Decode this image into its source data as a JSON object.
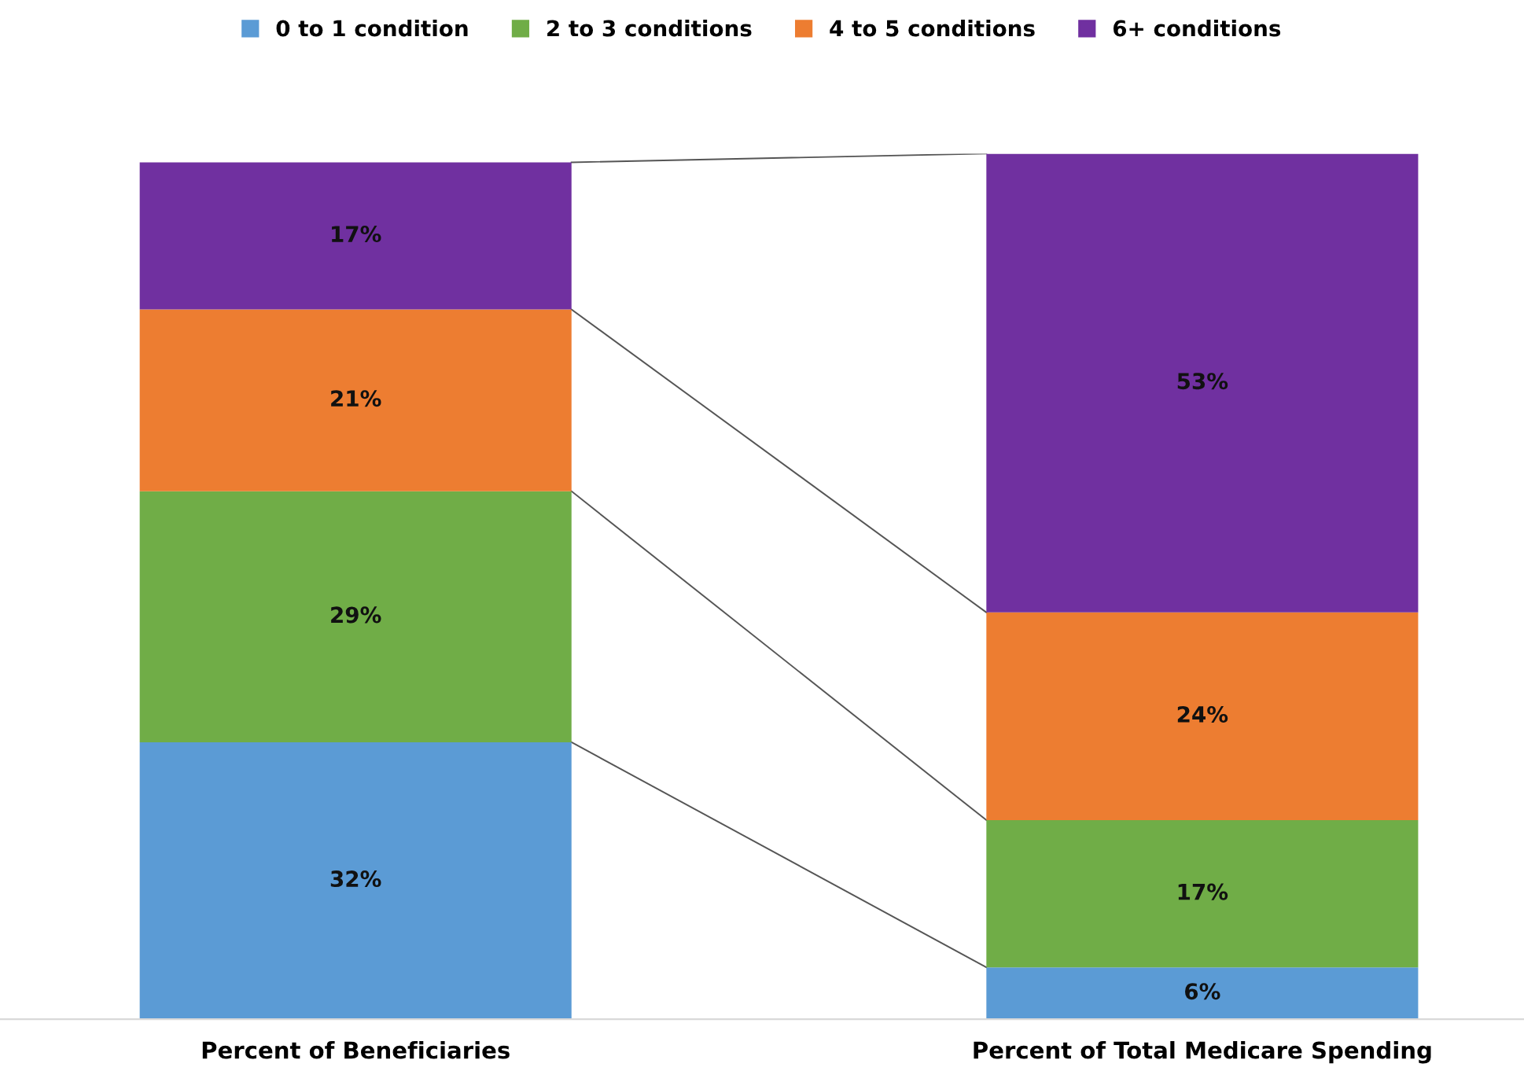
{
  "chart_data": {
    "type": "bar",
    "stacked": true,
    "categories": [
      "Percent of Beneficiaries",
      "Percent of Total Medicare Spending"
    ],
    "series": [
      {
        "name": "0 to 1 condition",
        "color": "#5b9bd5",
        "values": [
          32,
          6
        ],
        "value_labels": [
          "32%",
          "6%"
        ]
      },
      {
        "name": "2 to 3 conditions",
        "color": "#70ad47",
        "values": [
          29,
          17
        ],
        "value_labels": [
          "29%",
          "17%"
        ]
      },
      {
        "name": "4 to 5 conditions",
        "color": "#ed7d31",
        "values": [
          21,
          24
        ],
        "value_labels": [
          "21%",
          "24%"
        ]
      },
      {
        "name": "6+ conditions",
        "color": "#7030a0",
        "values": [
          17,
          53
        ],
        "value_labels": [
          "17%",
          "53%"
        ]
      }
    ],
    "legend": "top",
    "grid": false
  }
}
